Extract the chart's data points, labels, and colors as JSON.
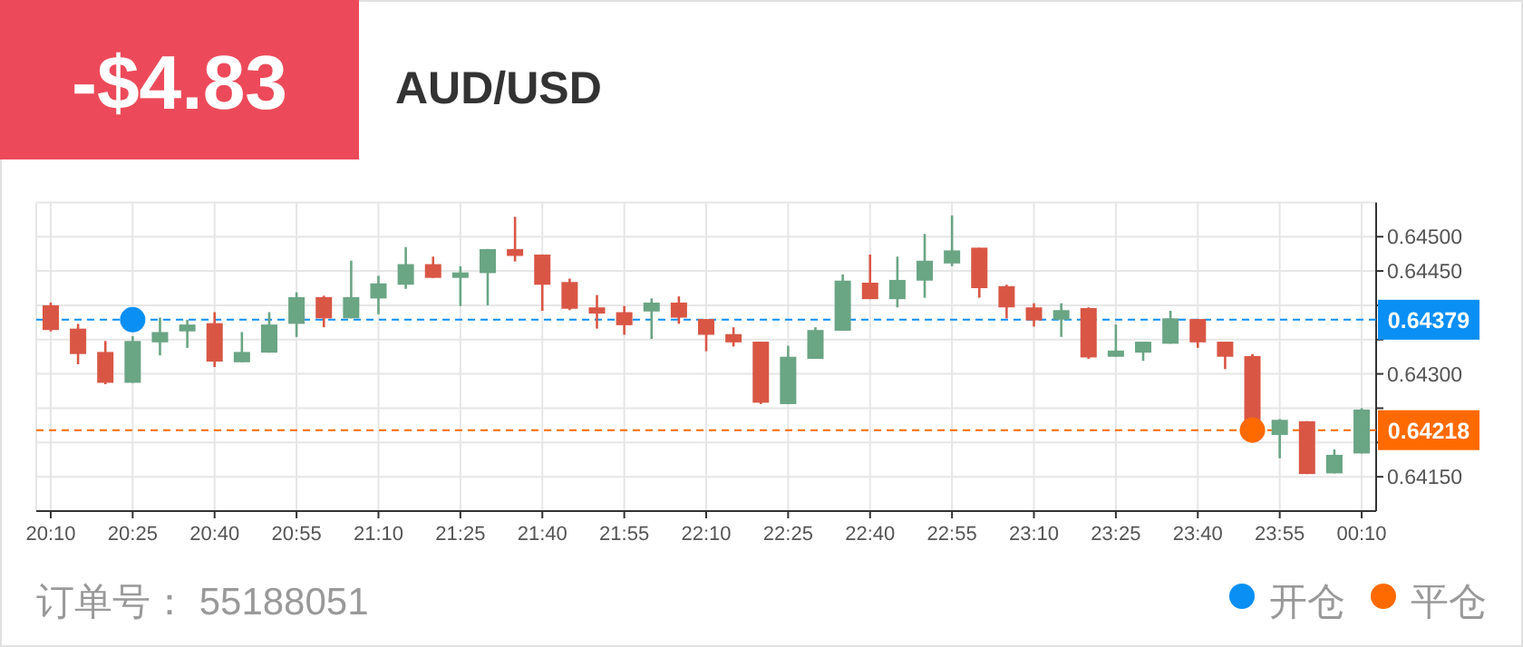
{
  "chart_data": {
    "type": "candlestick",
    "title": "AUD/USD",
    "annotations": [
      "-$4.83",
      "订单号：  55188051"
    ],
    "categories": [
      "20:10",
      null,
      null,
      "20:25",
      null,
      null,
      "20:40",
      null,
      null,
      "20:55",
      null,
      null,
      "21:10",
      null,
      null,
      "21:25",
      null,
      null,
      "21:40",
      null,
      null,
      "21:55",
      null,
      null,
      "22:10",
      null,
      null,
      "22:25",
      null,
      null,
      "22:40",
      null,
      null,
      "22:55",
      null,
      null,
      "23:10",
      null,
      null,
      "23:25",
      null,
      null,
      "23:40",
      null,
      null,
      "23:55",
      null,
      null,
      "00:10"
    ],
    "ohlc": [
      [
        0.644,
        0.64404,
        0.64362,
        0.64364
      ],
      [
        0.64366,
        0.64373,
        0.64314,
        0.64329
      ],
      [
        0.64332,
        0.64348,
        0.64285,
        0.64287
      ],
      [
        0.64287,
        0.64355,
        0.64287,
        0.64348
      ],
      [
        0.64346,
        0.64382,
        0.64327,
        0.64361
      ],
      [
        0.64362,
        0.64379,
        0.64338,
        0.64372
      ],
      [
        0.64374,
        0.6439,
        0.6431,
        0.64318
      ],
      [
        0.64317,
        0.64361,
        0.64317,
        0.64332
      ],
      [
        0.64331,
        0.6439,
        0.64331,
        0.64372
      ],
      [
        0.64373,
        0.64419,
        0.64354,
        0.64412
      ],
      [
        0.64412,
        0.64414,
        0.64368,
        0.64381
      ],
      [
        0.64381,
        0.64465,
        0.64381,
        0.64412
      ],
      [
        0.6441,
        0.64443,
        0.64387,
        0.64432
      ],
      [
        0.6443,
        0.64485,
        0.64424,
        0.6446
      ],
      [
        0.6446,
        0.64471,
        0.6444,
        0.6444
      ],
      [
        0.6444,
        0.64457,
        0.64399,
        0.64448
      ],
      [
        0.64447,
        0.64482,
        0.644,
        0.64482
      ],
      [
        0.64482,
        0.64529,
        0.64464,
        0.64472
      ],
      [
        0.64474,
        0.64474,
        0.64392,
        0.6443
      ],
      [
        0.64434,
        0.64439,
        0.64393,
        0.64395
      ],
      [
        0.64397,
        0.64415,
        0.64366,
        0.64388
      ],
      [
        0.6439,
        0.64399,
        0.64357,
        0.64371
      ],
      [
        0.64391,
        0.6441,
        0.64351,
        0.64404
      ],
      [
        0.64404,
        0.64413,
        0.64373,
        0.64382
      ],
      [
        0.6438,
        0.6438,
        0.64333,
        0.64357
      ],
      [
        0.64358,
        0.64368,
        0.6434,
        0.64346
      ],
      [
        0.64347,
        0.64347,
        0.64256,
        0.64258
      ],
      [
        0.64256,
        0.64341,
        0.64256,
        0.64325
      ],
      [
        0.64322,
        0.64368,
        0.64322,
        0.64364
      ],
      [
        0.64363,
        0.64445,
        0.64363,
        0.64436
      ],
      [
        0.64433,
        0.64474,
        0.64409,
        0.64409
      ],
      [
        0.64409,
        0.64471,
        0.64397,
        0.64437
      ],
      [
        0.64436,
        0.64504,
        0.64411,
        0.64465
      ],
      [
        0.64461,
        0.64531,
        0.64457,
        0.6448
      ],
      [
        0.64484,
        0.64484,
        0.64411,
        0.64425
      ],
      [
        0.64428,
        0.6443,
        0.64381,
        0.64397
      ],
      [
        0.64397,
        0.64403,
        0.64369,
        0.64378
      ],
      [
        0.64379,
        0.64403,
        0.64354,
        0.64393
      ],
      [
        0.64396,
        0.64397,
        0.64322,
        0.64324
      ],
      [
        0.64325,
        0.64372,
        0.64325,
        0.64334
      ],
      [
        0.64331,
        0.64347,
        0.64319,
        0.64347
      ],
      [
        0.64344,
        0.64392,
        0.64344,
        0.64381
      ],
      [
        0.6438,
        0.6438,
        0.64338,
        0.64346
      ],
      [
        0.64347,
        0.64347,
        0.64307,
        0.64325
      ],
      [
        0.64326,
        0.64329,
        0.64211,
        0.64211
      ],
      [
        0.64211,
        0.64234,
        0.64177,
        0.64233
      ],
      [
        0.64231,
        0.64231,
        0.64154,
        0.64154
      ],
      [
        0.64155,
        0.6419,
        0.64155,
        0.64182
      ],
      [
        0.64184,
        0.6425,
        0.64184,
        0.64248
      ]
    ],
    "colors": [
      "#d95645",
      "#d95645",
      "#d95645",
      "#6aa584",
      "#6aa584",
      "#6aa584",
      "#d95645",
      "#6aa584",
      "#6aa584",
      "#6aa584",
      "#d95645",
      "#6aa584",
      "#6aa584",
      "#6aa584",
      "#d95645",
      "#6aa584",
      "#6aa584",
      "#d95645",
      "#d95645",
      "#d95645",
      "#d95645",
      "#d95645",
      "#6aa584",
      "#d95645",
      "#d95645",
      "#d95645",
      "#d95645",
      "#6aa584",
      "#6aa584",
      "#6aa584",
      "#d95645",
      "#6aa584",
      "#6aa584",
      "#6aa584",
      "#d95645",
      "#d95645",
      "#d95645",
      "#6aa584",
      "#d95645",
      "#6aa584",
      "#6aa584",
      "#6aa584",
      "#d95645",
      "#d95645",
      "#d95645",
      "#6aa584",
      "#d95645",
      "#6aa584",
      "#6aa584"
    ],
    "series": [
      {
        "name": "开仓",
        "type": "scatter",
        "color": "#0a8ff5",
        "values": [
          null,
          null,
          null,
          0.64379,
          null,
          null,
          null,
          null,
          null,
          null,
          null,
          null,
          null,
          null,
          null,
          null,
          null,
          null,
          null,
          null,
          null,
          null,
          null,
          null,
          null,
          null,
          null,
          null,
          null,
          null,
          null,
          null,
          null,
          null,
          null,
          null,
          null,
          null,
          null,
          null,
          null,
          null,
          null,
          null,
          null,
          null,
          null,
          null,
          null
        ]
      },
      {
        "name": "平仓",
        "type": "scatter",
        "color": "#ff6a00",
        "values": [
          null,
          null,
          null,
          null,
          null,
          null,
          null,
          null,
          null,
          null,
          null,
          null,
          null,
          null,
          null,
          null,
          null,
          null,
          null,
          null,
          null,
          null,
          null,
          null,
          null,
          null,
          null,
          null,
          null,
          null,
          null,
          null,
          null,
          null,
          null,
          null,
          null,
          null,
          null,
          null,
          null,
          null,
          null,
          null,
          0.64218,
          null,
          null,
          null,
          null
        ]
      }
    ],
    "ref_lines": [
      {
        "axis": "y",
        "value": 0.64379,
        "label": "0.64379",
        "color": "#0a8ff5",
        "line_style": "dashed"
      },
      {
        "axis": "y",
        "value": 0.64218,
        "label": "0.64218",
        "color": "#ff6a00",
        "line_style": "dashed"
      }
    ],
    "ylim": [
      0.641,
      0.6455
    ],
    "yticks": [
      {
        "value": 0.645,
        "label": "0.64500"
      },
      {
        "value": 0.6445,
        "label": "0.64450"
      },
      {
        "value": 0.644,
        "label": null
      },
      {
        "value": 0.6435,
        "label": null
      },
      {
        "value": 0.643,
        "label": "0.64300"
      },
      {
        "value": 0.6425,
        "label": null
      },
      {
        "value": 0.642,
        "label": null
      },
      {
        "value": 0.6415,
        "label": "0.64150"
      }
    ],
    "grid": true,
    "legend": "bottom right",
    "marker": "circle"
  }
}
